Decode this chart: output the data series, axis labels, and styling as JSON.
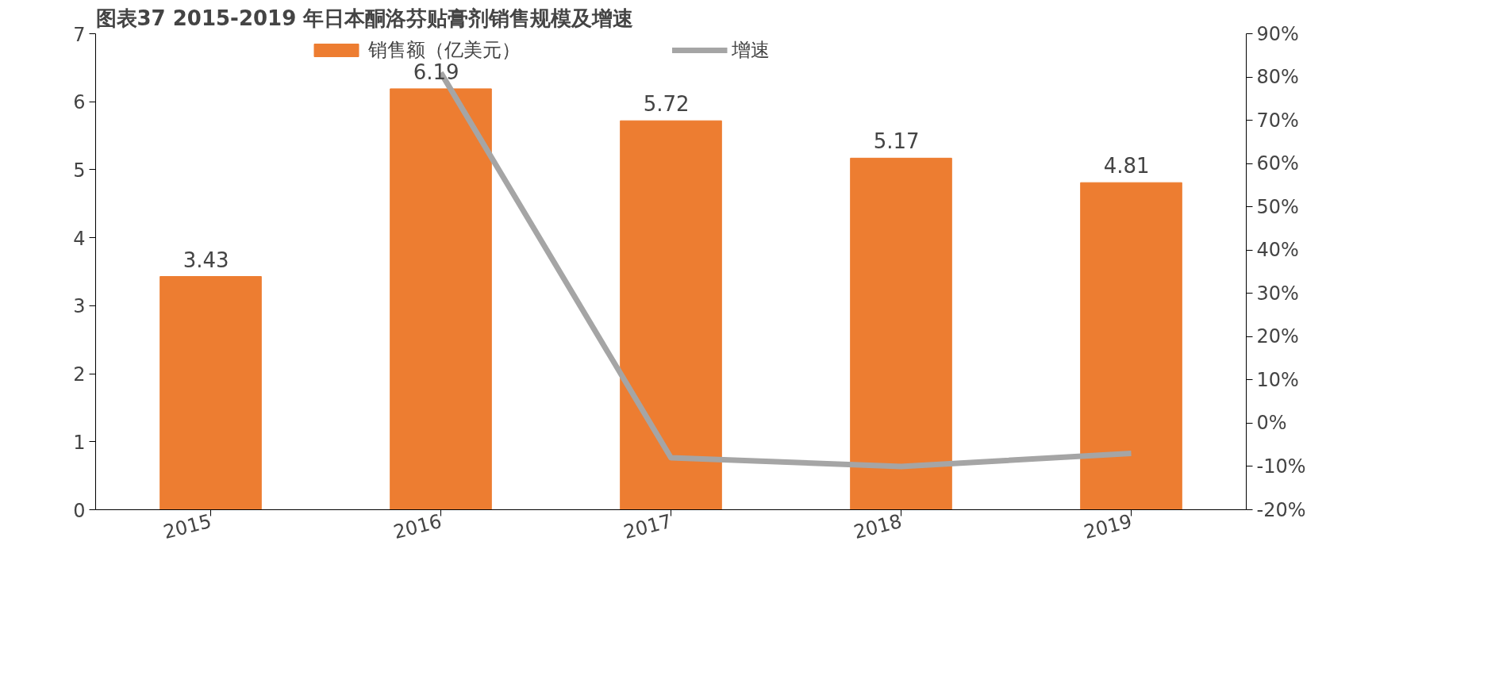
{
  "chart_data": {
    "type": "bar",
    "title": "图表37    2015-2019 年日本酮洛芬贴膏剂销售规模及增速",
    "categories": [
      "2015",
      "2016",
      "2017",
      "2018",
      "2019"
    ],
    "series": [
      {
        "name": "销售额（亿美元）",
        "type": "bar",
        "color": "#ed7d31",
        "values": [
          3.43,
          6.19,
          5.72,
          5.17,
          4.81
        ]
      },
      {
        "name": "增速",
        "type": "line",
        "axis": "y2",
        "color": "#a5a5a5",
        "values": [
          null,
          81,
          -8,
          -10,
          -7
        ]
      }
    ],
    "ylim": [
      0,
      7
    ],
    "yticks": [
      0,
      1,
      2,
      3,
      4,
      5,
      6,
      7
    ],
    "y2lim": [
      -20,
      90
    ],
    "y2ticks": [
      {
        "value": -20,
        "label": "-20%"
      },
      {
        "value": -10,
        "label": "-10%"
      },
      {
        "value": 0,
        "label": "0%"
      },
      {
        "value": 10,
        "label": "10%"
      },
      {
        "value": 20,
        "label": "20%"
      },
      {
        "value": 30,
        "label": "30%"
      },
      {
        "value": 40,
        "label": "40%"
      },
      {
        "value": 50,
        "label": "50%"
      },
      {
        "value": 60,
        "label": "60%"
      },
      {
        "value": 70,
        "label": "70%"
      },
      {
        "value": 80,
        "label": "80%"
      },
      {
        "value": 90,
        "label": "90%"
      }
    ],
    "value_labels": [
      "3.43",
      "6.19",
      "5.72",
      "5.17",
      "4.81"
    ],
    "grid": false,
    "legend": "top",
    "marker": "none",
    "line_style": "solid"
  }
}
